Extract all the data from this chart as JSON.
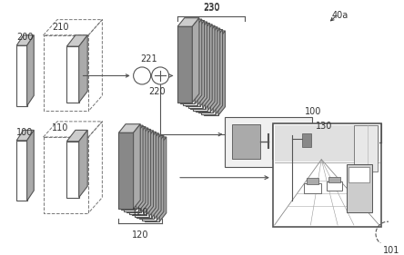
{
  "bg_color": "#ffffff",
  "line_color": "#555555",
  "label_color": "#333333",
  "fontsize": 7.0,
  "fig_w": 4.44,
  "fig_h": 2.81,
  "dpi": 100
}
